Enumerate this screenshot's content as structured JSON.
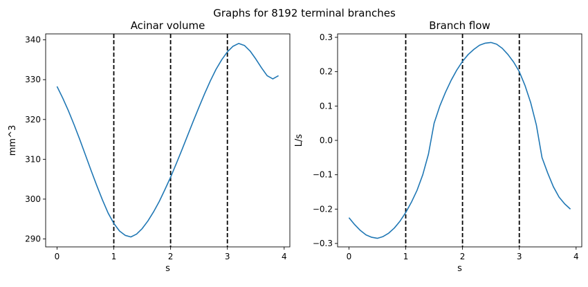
{
  "figure": {
    "suptitle": "Graphs for 8192 terminal branches"
  },
  "colors": {
    "line": "#1f77b4",
    "marker_lines": "#000000"
  },
  "chart_data": [
    {
      "type": "line",
      "title": "Acinar volume",
      "xlabel": "s",
      "ylabel": "mm^3",
      "xlim": [
        -0.2,
        4.1
      ],
      "ylim": [
        288,
        341.5
      ],
      "xticks": [
        0,
        1,
        2,
        3,
        4
      ],
      "yticks": [
        290,
        300,
        310,
        320,
        330,
        340
      ],
      "ytick_labels": [
        "290",
        "300",
        "310",
        "320",
        "330",
        "340"
      ],
      "vlines": [
        1,
        2,
        3
      ],
      "grid": false,
      "series": [
        {
          "x": [
            0,
            0.1,
            0.2,
            0.3,
            0.4,
            0.5,
            0.6,
            0.7,
            0.8,
            0.9,
            1.0,
            1.1,
            1.2,
            1.3,
            1.4,
            1.5,
            1.6,
            1.7,
            1.8,
            1.9,
            2.0,
            2.1,
            2.2,
            2.3,
            2.4,
            2.5,
            2.6,
            2.7,
            2.8,
            2.9,
            3.0,
            3.1,
            3.2,
            3.3,
            3.4,
            3.5,
            3.6,
            3.7,
            3.8,
            3.9
          ],
          "y": [
            328.3,
            325.4,
            322.2,
            318.7,
            315.0,
            311.1,
            307.2,
            303.4,
            299.8,
            296.5,
            293.9,
            292.0,
            290.9,
            290.5,
            291.2,
            292.6,
            294.5,
            296.8,
            299.4,
            302.4,
            305.5,
            308.9,
            312.4,
            316.0,
            319.6,
            323.1,
            326.5,
            329.7,
            332.6,
            335.0,
            337.0,
            338.4,
            339.1,
            338.6,
            337.2,
            335.2,
            333.0,
            331.0,
            330.2,
            331.0
          ]
        }
      ]
    },
    {
      "type": "line",
      "title": "Branch flow",
      "xlabel": "s",
      "ylabel": "L/s",
      "xlim": [
        -0.2,
        4.1
      ],
      "ylim": [
        -0.31,
        0.31
      ],
      "xticks": [
        0,
        1,
        2,
        3,
        4
      ],
      "yticks": [
        -0.3,
        -0.2,
        -0.1,
        0.0,
        0.1,
        0.2,
        0.3
      ],
      "ytick_labels": [
        "−0.3",
        "−0.2",
        "−0.1",
        "0.0",
        "0.1",
        "0.2",
        "0.3"
      ],
      "vlines": [
        1,
        2,
        3
      ],
      "grid": false,
      "series": [
        {
          "x": [
            0,
            0.1,
            0.2,
            0.3,
            0.4,
            0.5,
            0.6,
            0.7,
            0.8,
            0.9,
            1.0,
            1.1,
            1.2,
            1.3,
            1.4,
            1.5,
            1.6,
            1.7,
            1.8,
            1.9,
            2.0,
            2.1,
            2.2,
            2.3,
            2.4,
            2.5,
            2.6,
            2.7,
            2.8,
            2.9,
            3.0,
            3.1,
            3.2,
            3.3,
            3.4,
            3.5,
            3.6,
            3.7,
            3.8,
            3.9
          ],
          "y": [
            -0.225,
            -0.245,
            -0.262,
            -0.275,
            -0.282,
            -0.285,
            -0.28,
            -0.27,
            -0.255,
            -0.235,
            -0.21,
            -0.18,
            -0.145,
            -0.1,
            -0.04,
            0.05,
            0.1,
            0.14,
            0.175,
            0.205,
            0.23,
            0.25,
            0.265,
            0.277,
            0.283,
            0.285,
            0.28,
            0.268,
            0.25,
            0.228,
            0.2,
            0.16,
            0.11,
            0.045,
            -0.05,
            -0.095,
            -0.135,
            -0.165,
            -0.185,
            -0.2
          ]
        }
      ]
    }
  ]
}
